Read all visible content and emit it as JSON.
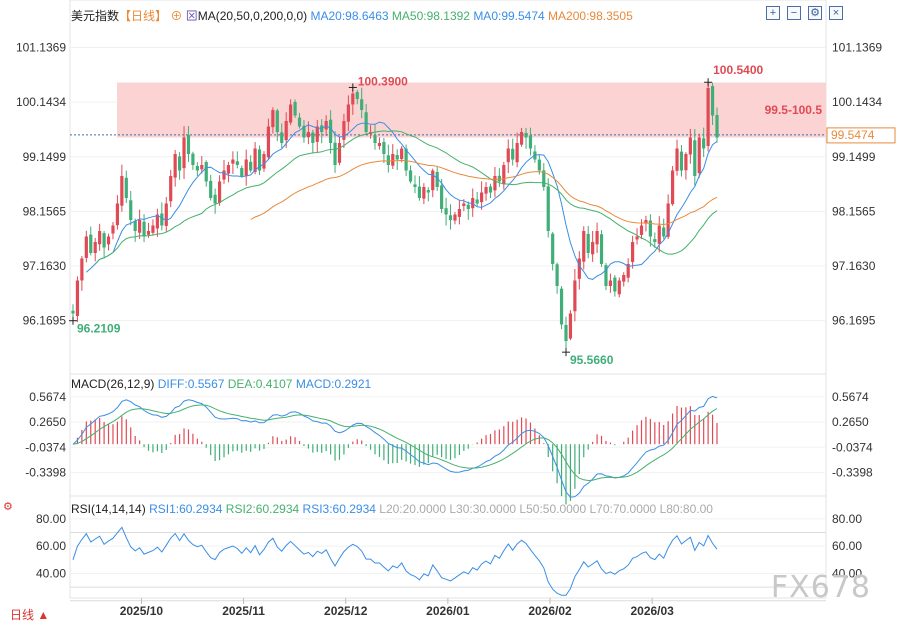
{
  "header": {
    "symbol": "美元指数",
    "period": "【日线】",
    "ma_label": "MA(20,50,0,200,0,0)",
    "ma20": "MA20:98.6463",
    "ma50": "MA50:98.1392",
    "ma0": "MA0:99.5474",
    "ma200": "MA200:98.3505"
  },
  "colors": {
    "up": "#e04a55",
    "down": "#3fae78",
    "ma20": "#3a8ee6",
    "ma50": "#46b06e",
    "ma200": "#e8893a",
    "zone": "#fbd3d3",
    "label_red": "#e04a55",
    "label_green": "#3fae78"
  },
  "buttons": {
    "zoom_in": "+",
    "zoom_out": "−",
    "settings": "⚙",
    "close": "×"
  },
  "price_axis": {
    "ticks": [
      "101.1369",
      "100.1434",
      "99.1499",
      "98.1565",
      "97.1630",
      "96.1695"
    ]
  },
  "annotations": {
    "high1": "100.3900",
    "high2": "100.5400",
    "low1": "96.2109",
    "low2": "95.5660",
    "zone": "99.5-100.5",
    "last_price": "99.5474"
  },
  "x_axis": {
    "labels": [
      "2025/10",
      "2025/11",
      "2025/12",
      "2026/01",
      "2026/02",
      "2026/03"
    ]
  },
  "macd": {
    "title": "MACD(26,12,9)",
    "diff": "DIFF:0.5567",
    "dea": "DEA:0.4107",
    "macd": "MACD:0.2921",
    "ticks": [
      "0.5674",
      "0.2650",
      "-0.0374",
      "-0.3398"
    ]
  },
  "rsi": {
    "title": "RSI(14,14,14)",
    "rsi1": "RSI1:60.2934",
    "rsi2": "RSI2:60.2934",
    "rsi3": "RSI3:60.2934",
    "l20": "L20:20.0000",
    "l30": "L30:30.0000",
    "l50": "L50:50.0000",
    "l70": "L70:70.0000",
    "l80": "L80:80.00",
    "ticks": [
      "80.00",
      "60.00",
      "40.00"
    ]
  },
  "footer": {
    "period_button": "日线 ▲",
    "watermark": "FX678"
  },
  "chart_data": {
    "type": "candlestick",
    "price_ylim": [
      95.2,
      101.6
    ],
    "resistance_zone": [
      99.5,
      100.5
    ],
    "last_price": 99.5474,
    "closes": [
      96.3,
      96.9,
      97.3,
      97.7,
      97.4,
      97.6,
      97.8,
      97.5,
      97.7,
      97.9,
      98.3,
      98.8,
      98.4,
      98.0,
      97.8,
      98.0,
      97.7,
      97.8,
      97.9,
      98.1,
      97.9,
      98.3,
      98.8,
      99.2,
      98.9,
      99.5,
      99.2,
      99.0,
      98.9,
      99.0,
      98.7,
      98.4,
      98.3,
      98.7,
      98.9,
      99.0,
      99.1,
      99.0,
      98.8,
      99.1,
      98.9,
      99.3,
      98.9,
      99.2,
      99.7,
      100.0,
      99.6,
      99.4,
      99.8,
      100.1,
      99.9,
      99.7,
      99.5,
      99.6,
      99.4,
      99.7,
      99.6,
      99.8,
      99.4,
      99.0,
      99.4,
      99.8,
      100.1,
      100.3,
      100.2,
      100.0,
      99.6,
      99.6,
      99.4,
      99.4,
      99.2,
      99.0,
      99.2,
      99.1,
      99.3,
      98.9,
      98.7,
      98.6,
      98.4,
      98.6,
      98.5,
      98.9,
      98.6,
      98.2,
      98.1,
      98.0,
      98.1,
      98.2,
      98.3,
      98.2,
      98.4,
      98.3,
      98.5,
      98.6,
      98.5,
      98.8,
      98.7,
      99.0,
      99.3,
      99.1,
      99.4,
      99.6,
      99.5,
      99.3,
      99.1,
      98.9,
      98.6,
      97.8,
      97.2,
      96.8,
      96.1,
      95.8,
      96.3,
      96.9,
      97.3,
      97.8,
      97.4,
      97.6,
      97.8,
      97.2,
      96.8,
      96.9,
      96.7,
      96.9,
      97.0,
      97.2,
      97.6,
      97.7,
      97.9,
      98.0,
      97.7,
      97.6,
      97.9,
      97.7,
      98.3,
      98.9,
      99.3,
      98.9,
      99.2,
      99.5,
      98.8,
      99.5,
      99.3,
      100.4,
      99.9,
      99.5
    ]
  }
}
